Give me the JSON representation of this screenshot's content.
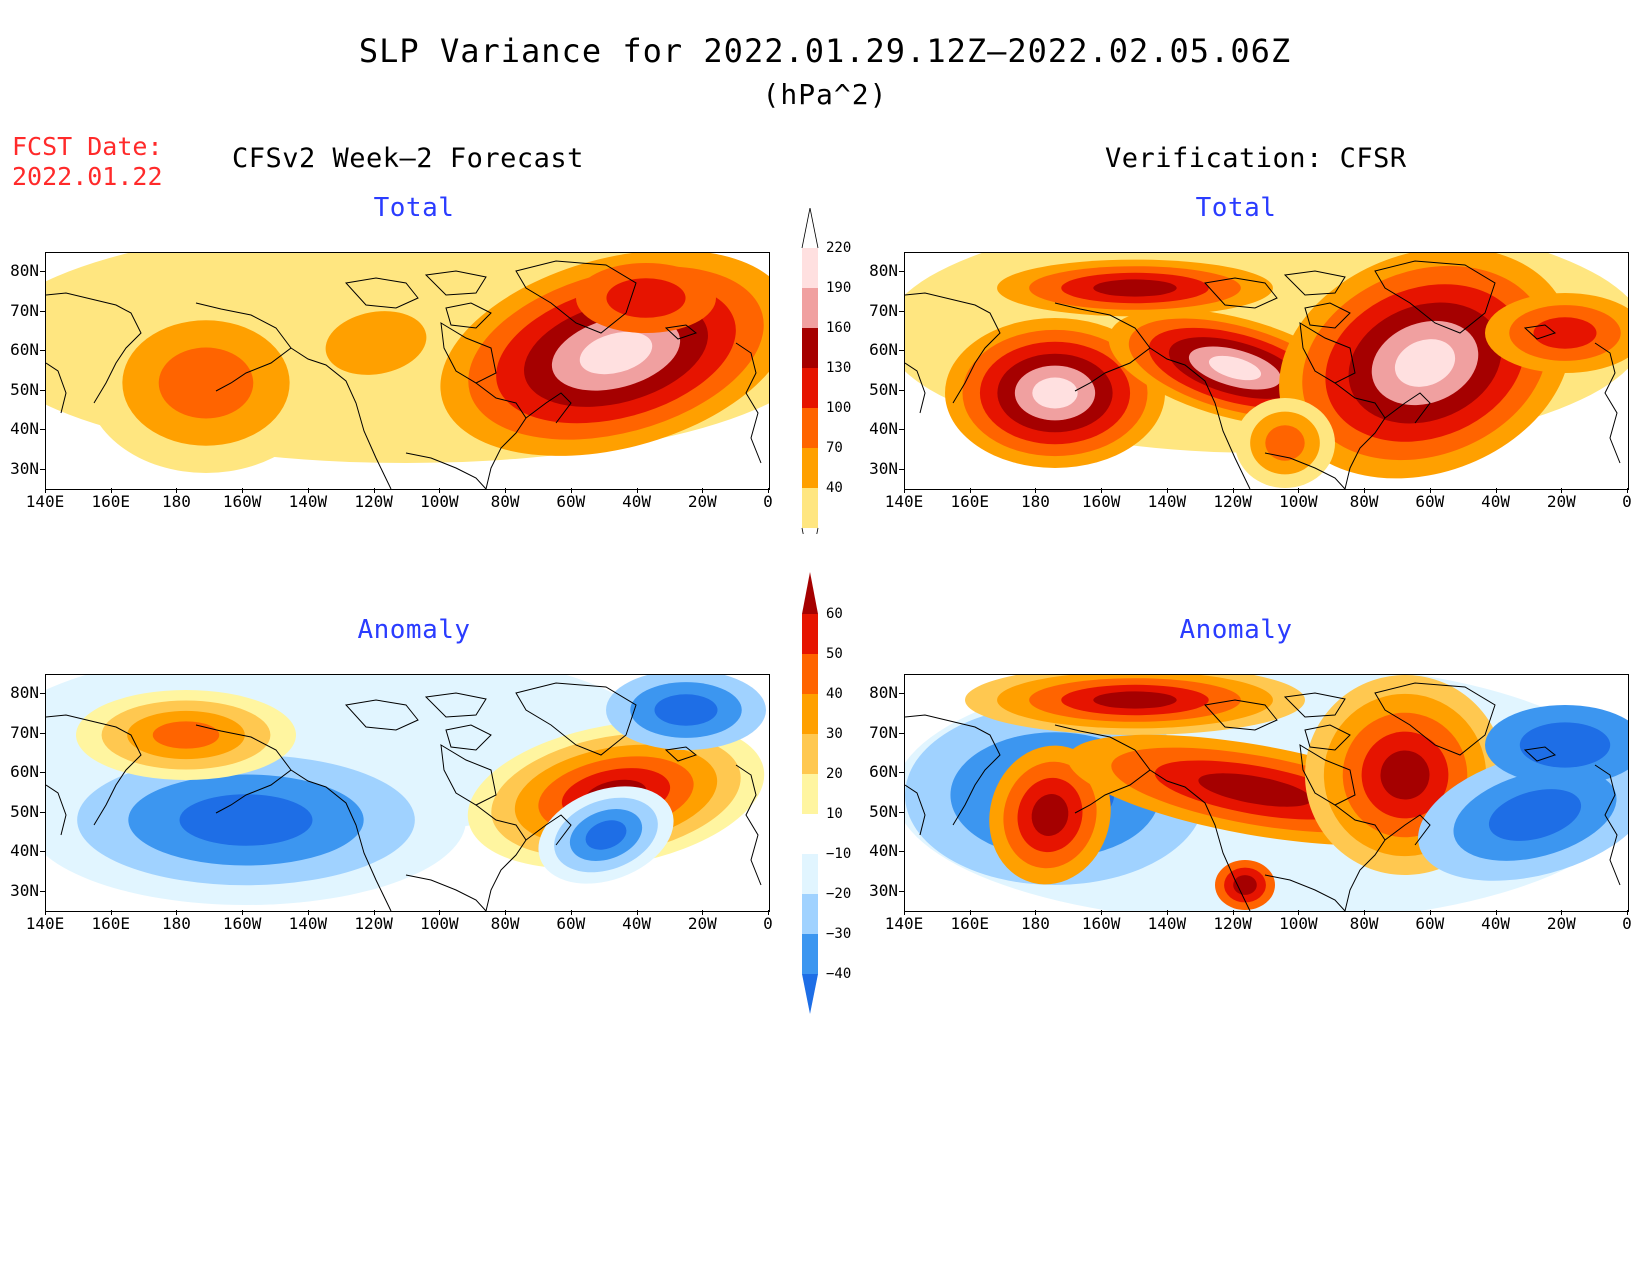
{
  "title": "SLP Variance for 2022.01.29.12Z–2022.02.05.06Z",
  "units": "(hPa^2)",
  "forecast_date": {
    "label": "FCST Date:",
    "value": "2022.01.22"
  },
  "columns": {
    "left": "CFSv2 Week–2 Forecast",
    "right": "Verification: CFSR"
  },
  "panels": {
    "total": "Total",
    "anomaly": "Anomaly"
  },
  "lat_labels": [
    "80N",
    "70N",
    "60N",
    "50N",
    "40N",
    "30N"
  ],
  "lon_labels": [
    "140E",
    "160E",
    "180",
    "160W",
    "140W",
    "120W",
    "100W",
    "80W",
    "60W",
    "40W",
    "20W",
    "0"
  ],
  "colorbar_total": {
    "levels": [
      "40",
      "70",
      "100",
      "130",
      "160",
      "190",
      "220"
    ],
    "colors": [
      "#ffe680",
      "#ffa000",
      "#ff6400",
      "#e61400",
      "#a50000",
      "#f0a0a0",
      "#ffe0e0"
    ]
  },
  "colorbar_anomaly": {
    "levels": [
      "60",
      "50",
      "40",
      "30",
      "20",
      "10",
      "−10",
      "−20",
      "−30",
      "−40"
    ],
    "colors": [
      "#a50000",
      "#e61400",
      "#ff6400",
      "#ffa000",
      "#ffc850",
      "#fff5a0",
      "#ffffff",
      "#e1f5ff",
      "#a0d2ff",
      "#3c96f0",
      "#1e6ee6"
    ]
  },
  "palette": {
    "total": [
      "#ffe680",
      "#ffa000",
      "#ff6400",
      "#e61400",
      "#a50000",
      "#f0a0a0",
      "#ffe0e0"
    ],
    "anomaly_pos": [
      "#fff5a0",
      "#ffc850",
      "#ffa000",
      "#ff6400",
      "#e61400",
      "#a50000"
    ],
    "anomaly_neg": [
      "#e1f5ff",
      "#a0d2ff",
      "#3c96f0",
      "#1e6ee6"
    ]
  }
}
